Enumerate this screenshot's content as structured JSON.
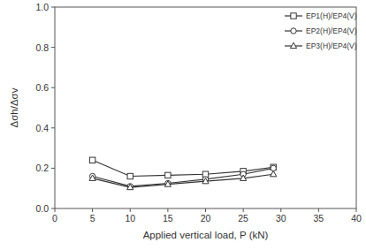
{
  "chart_data": {
    "type": "line",
    "x_label": "Applied vertical load, P (kN)",
    "y_label": "Δσh/Δσv",
    "x": [
      5,
      10,
      15,
      20,
      25,
      29
    ],
    "series": [
      {
        "name": "EP1(H)/EP4(V)",
        "color": "#333333",
        "marker": "square",
        "values": [
          0.24,
          0.16,
          0.165,
          0.17,
          0.185,
          0.205
        ]
      },
      {
        "name": "EP2(H)/EP4(V)",
        "color": "#333333",
        "marker": "circle",
        "values": [
          0.16,
          0.11,
          0.125,
          0.145,
          0.17,
          0.2
        ]
      },
      {
        "name": "EP3(H)/EP4(V)",
        "color": "#333333",
        "marker": "triangle",
        "values": [
          0.15,
          0.105,
          0.12,
          0.135,
          0.15,
          0.17
        ]
      }
    ],
    "xlim": [
      0,
      40
    ],
    "xticks": [
      0,
      5,
      10,
      15,
      20,
      25,
      30,
      35,
      40
    ],
    "ylim": [
      0,
      1
    ],
    "yticks": [
      {
        "value": 0,
        "label": "0.0"
      },
      0.2,
      0.4,
      0.6,
      0.8,
      {
        "value": 1,
        "label": "1.0"
      }
    ],
    "grid": false,
    "legend": "upper right"
  }
}
